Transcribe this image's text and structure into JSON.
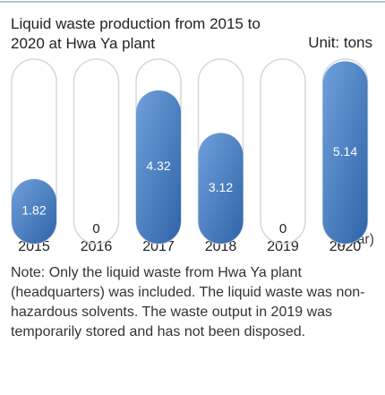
{
  "chart_data": {
    "type": "capsule-bar",
    "title": "Liquid waste production from 2015 to 2020 at Hwa Ya plant",
    "unit_label": "Unit: tons",
    "x_unit_label": "(year)",
    "categories": [
      "2015",
      "2016",
      "2017",
      "2018",
      "2019",
      "2020"
    ],
    "values": [
      1.82,
      0,
      4.32,
      3.12,
      0,
      5.14
    ],
    "color": "#4a7fc1",
    "ylim": [
      0,
      5.2
    ]
  },
  "note": "Note: Only the liquid waste from Hwa Ya plant (headquarters) was included. The liquid waste was non-hazardous solvents. The waste output in 2019 was temporarily stored and has not been disposed."
}
